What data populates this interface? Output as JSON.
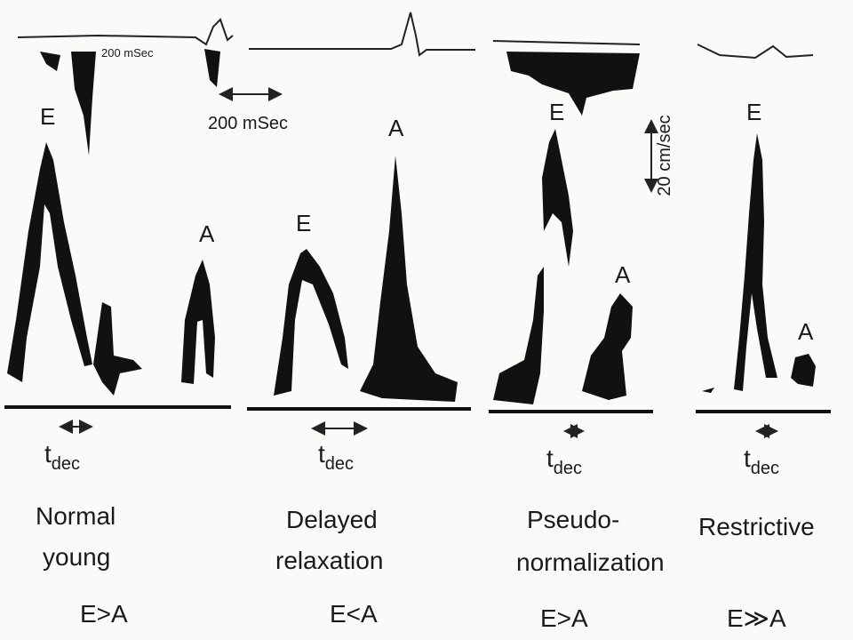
{
  "scale_labels": {
    "small_time": "200 mSec",
    "time": "200 mSec",
    "velocity": "20 cm/sec"
  },
  "panels": [
    {
      "e_label": "E",
      "a_label": "A",
      "tdec": "t",
      "tdec_sub": "dec",
      "title": [
        "Normal",
        "young"
      ],
      "ratio": "E>A"
    },
    {
      "e_label": "E",
      "a_label": "A",
      "tdec": "t",
      "tdec_sub": "dec",
      "title": [
        "Delayed",
        "relaxation"
      ],
      "ratio": "E<A"
    },
    {
      "e_label": "E",
      "a_label": "A",
      "tdec": "t",
      "tdec_sub": "dec",
      "title": [
        "Pseudo-",
        "normalization"
      ],
      "ratio": "E>A"
    },
    {
      "e_label": "E",
      "a_label": "A",
      "tdec": "t",
      "tdec_sub": "dec",
      "title": [
        "Restrictive"
      ],
      "ratio": "E≫A"
    }
  ]
}
